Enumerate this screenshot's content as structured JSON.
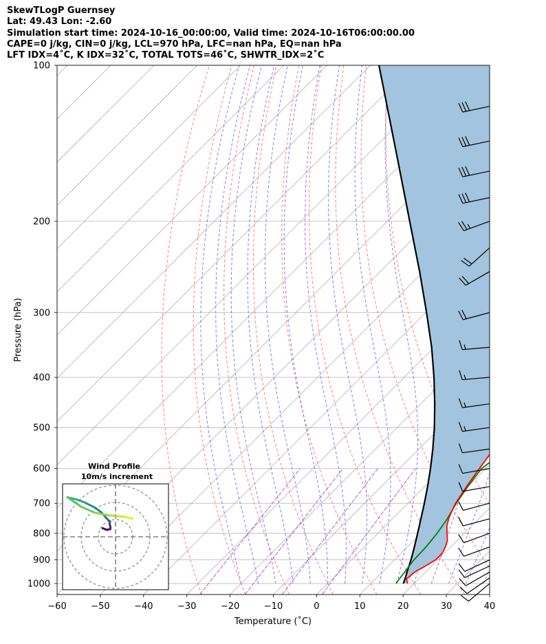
{
  "header": {
    "title_line": "SkewTLogP Guernsey",
    "location_line": "Lat: 49.43   Lon: -2.60",
    "time_line": "Simulation start time: 2024-10-16_00:00:00, Valid time: 2024-10-16T06:00:00.00",
    "cape_line": "CAPE=0 j/kg, CIN=0 j/kg, LCL=970 hPa, LFC=nan hPa, EQ=nan hPa",
    "index_line": "LFT IDX=4˚C, K IDX=32˚C, TOTAL TOTS=46˚C, SHWTR_IDX=2˚C"
  },
  "chart_data": [
    {
      "type": "line",
      "subtype": "skewt-logp",
      "xlabel": "Temperature (˚C)",
      "ylabel": "Pressure (hPa)",
      "xlim": [
        -60,
        40
      ],
      "ylim": [
        1050,
        100
      ],
      "y_scale": "log",
      "grid": true,
      "x_ticks": [
        -60,
        -50,
        -40,
        -30,
        -20,
        -10,
        0,
        10,
        20,
        30,
        40
      ],
      "y_ticks": [
        1000,
        900,
        800,
        700,
        600,
        500,
        400,
        300,
        200,
        100
      ],
      "colors": {
        "temperature": "#ff0000",
        "dewpoint": "#008000",
        "parcel": "#000000",
        "cape_fill": "#a2c4de",
        "dry_adiabat": "#ff6666",
        "moist_adiabat": "#6666ff",
        "mixing_ratio": "#9933cc",
        "isotherm": "#b0b0b0"
      },
      "series": [
        {
          "key": "temperature",
          "pressure": [
            1000,
            980,
            950,
            925,
            900,
            875,
            850,
            825,
            800,
            775,
            750,
            725,
            700,
            650,
            600,
            550,
            500,
            450,
            400,
            350,
            300,
            270,
            250,
            230,
            215,
            200,
            190,
            180,
            170,
            160,
            150,
            140,
            130,
            120,
            110,
            100
          ],
          "values": [
            18.5,
            17.2,
            17.5,
            18.6,
            19.5,
            19.5,
            18.8,
            17.7,
            16.0,
            14.3,
            13.0,
            12.0,
            11.0,
            9.7,
            8.5,
            7.3,
            5.5,
            3.5,
            -0.5,
            -5.5,
            -12.0,
            -16.0,
            -19.0,
            -21.5,
            -22.5,
            -23.5,
            -21.5,
            -18.0,
            -12.0,
            -7.0,
            -4.5,
            -3.5,
            -3.0,
            -2.5,
            -1.5,
            -0.5
          ]
        },
        {
          "key": "dewpoint",
          "pressure": [
            1000,
            980,
            950,
            925,
            900,
            850,
            800,
            750,
            700,
            650,
            600,
            550,
            500,
            450,
            400,
            350,
            320,
            300,
            280,
            260,
            240,
            220,
            200,
            190,
            180,
            170,
            160,
            150,
            140,
            130,
            120,
            110,
            100
          ],
          "values": [
            15.8,
            15.5,
            15.2,
            14.8,
            14.5,
            14.3,
            13.7,
            12.7,
            11.2,
            10.0,
            9.0,
            10.5,
            9.5,
            5.0,
            -3.5,
            -13.0,
            -17.5,
            -20.0,
            -20.5,
            -22.0,
            -24.5,
            -26.0,
            -30.0,
            -28.5,
            -34.0,
            -43.0,
            -50.0,
            -53.0,
            -52.0,
            -51.5,
            -49.0,
            -46.0,
            -43.0
          ]
        },
        {
          "key": "parcel",
          "pressure": [
            1000,
            970,
            950,
            900,
            850,
            800,
            750,
            700,
            650,
            600,
            550,
            500,
            450,
            400,
            350,
            300,
            250,
            200,
            150,
            100
          ],
          "values": [
            17.5,
            16.5,
            15.7,
            13.8,
            11.6,
            9.2,
            6.6,
            3.8,
            0.7,
            -2.8,
            -6.8,
            -11.4,
            -16.8,
            -23.1,
            -30.6,
            -39.8,
            -50.9,
            -64.8,
            -82.7,
            -108.0
          ]
        }
      ]
    },
    {
      "type": "scatter",
      "subtype": "hodograph",
      "title": "Wind Profile",
      "subtitle": "10m/s increment",
      "ring_step": 10,
      "rings": 3,
      "grid": true,
      "x": [
        -7.5,
        -5.0,
        -3.0,
        -3.0,
        -3.5,
        -3.2,
        -4.0,
        -5.0,
        -8.0,
        -12.0,
        -18.0,
        -22.0,
        -26.0,
        -28.0,
        -20.0,
        -12.0,
        -4.0,
        2.0,
        6.0,
        10.0
      ],
      "y": [
        5.0,
        4.0,
        4.5,
        6.0,
        7.5,
        9.0,
        9.5,
        10.5,
        14.0,
        17.0,
        20.0,
        21.5,
        22.5,
        23.0,
        17.5,
        14.0,
        12.5,
        12.0,
        11.5,
        10.5
      ],
      "color_scale": [
        "#440154",
        "#3b528b",
        "#21918c",
        "#5ec962",
        "#fde725"
      ]
    }
  ],
  "wind_barbs": {
    "pressure": [
      1000,
      975,
      950,
      925,
      900,
      850,
      800,
      750,
      700,
      650,
      600,
      550,
      500,
      450,
      400,
      350,
      300,
      250,
      225,
      200,
      180,
      160,
      140,
      120
    ],
    "speed_kt": [
      10,
      10,
      10,
      10,
      10,
      10,
      10,
      10,
      10,
      10,
      10,
      10,
      15,
      15,
      15,
      15,
      20,
      20,
      20,
      25,
      30,
      30,
      30,
      30
    ],
    "direction_deg": [
      230,
      235,
      240,
      245,
      245,
      250,
      250,
      255,
      255,
      260,
      260,
      262,
      262,
      262,
      265,
      265,
      255,
      240,
      228,
      250,
      258,
      258,
      258,
      258
    ]
  }
}
